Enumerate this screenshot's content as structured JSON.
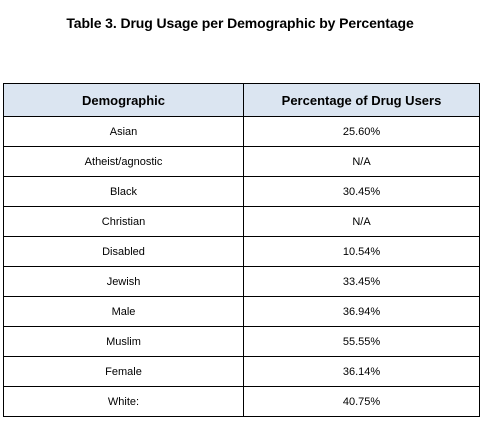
{
  "table": {
    "caption": "Table 3. Drug Usage per Demographic by Percentage",
    "headers": [
      "Demographic",
      "Percentage of Drug Users"
    ],
    "header_background": "#dbe5f1",
    "rows": [
      [
        "Asian",
        "25.60%"
      ],
      [
        "Atheist/agnostic",
        "N/A"
      ],
      [
        "Black",
        "30.45%"
      ],
      [
        "Christian",
        "N/A"
      ],
      [
        "Disabled",
        "10.54%"
      ],
      [
        "Jewish",
        "33.45%"
      ],
      [
        "Male",
        "36.94%"
      ],
      [
        "Muslim",
        "55.55%"
      ],
      [
        "Female",
        "36.14%"
      ],
      [
        "White:",
        "40.75%"
      ]
    ]
  }
}
